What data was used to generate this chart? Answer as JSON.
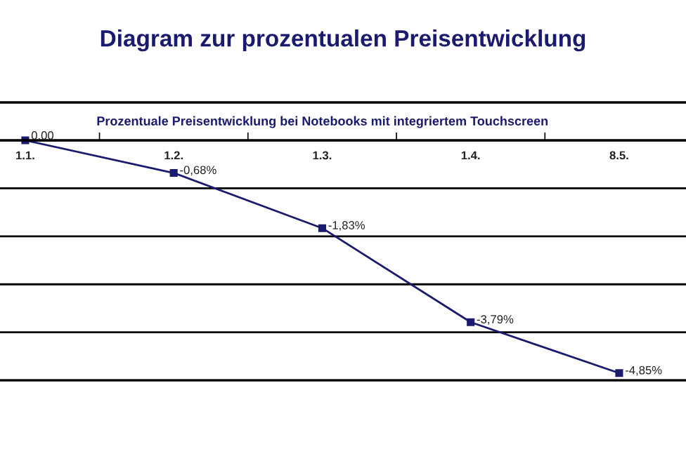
{
  "chart_data": {
    "type": "line",
    "title": "Diagram zur prozentualen Preisentwicklung",
    "subtitle": "Prozentuale Preisentwicklung bei Notebooks mit integriertem Touchscreen",
    "categories": [
      "1.1.",
      "1.2.",
      "1.3.",
      "1.4.",
      "8.5."
    ],
    "series": [
      {
        "color": "#1a1a6e",
        "values": [
          0,
          -0.68,
          -1.83,
          -3.79,
          -4.85
        ],
        "value_labels": [
          "0,00",
          "-0,68%",
          "-1,83%",
          "-3,79%",
          "-4,85%"
        ]
      }
    ],
    "ylim": [
      -5,
      0
    ],
    "yticks": [
      {
        "value": 0,
        "label": null
      },
      {
        "value": -1,
        "label": null
      },
      {
        "value": -2,
        "label": null
      },
      {
        "value": -3,
        "label": null
      },
      {
        "value": -4,
        "label": null
      },
      {
        "value": -5,
        "label": null
      }
    ],
    "grid": "y",
    "tick_labels": "x",
    "marker": "square",
    "line_style": "solid",
    "legend": false
  }
}
